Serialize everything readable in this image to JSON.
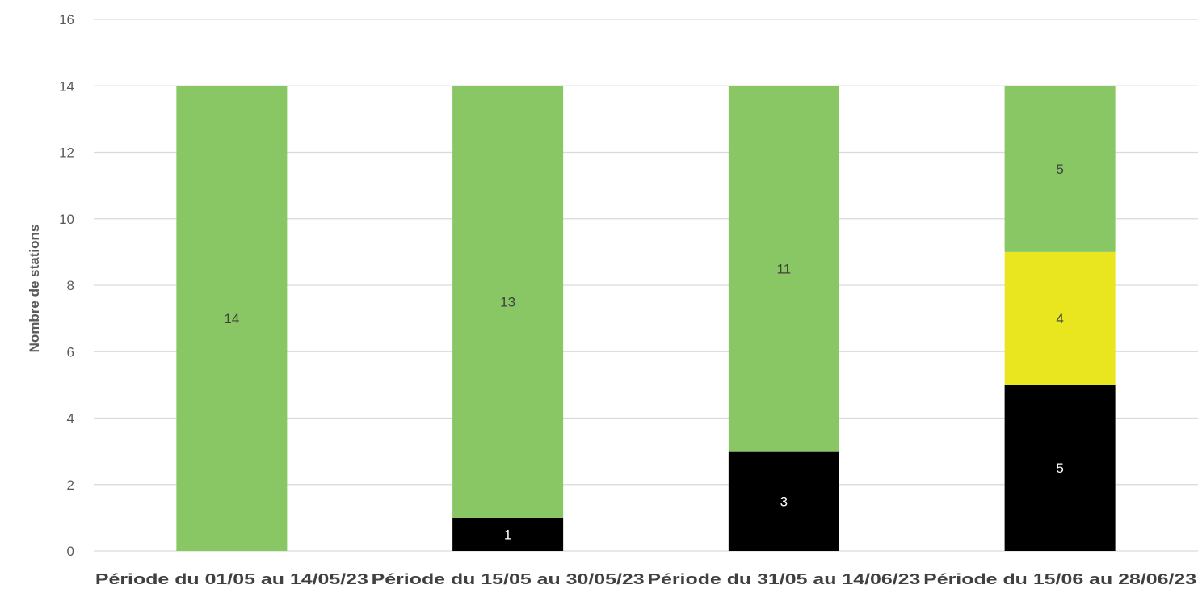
{
  "chart_data": {
    "type": "bar",
    "stacked": true,
    "title": "",
    "xlabel": "",
    "ylabel": "Nombre de stations",
    "ylim": [
      0,
      16
    ],
    "yticks": [
      0,
      2,
      4,
      6,
      8,
      10,
      12,
      14,
      16
    ],
    "grid": true,
    "legend": "none",
    "categories": [
      "Période du 01/05 au 14/05/23",
      "Période du 15/05 au 30/05/23",
      "Période du 31/05 au 14/06/23",
      "Période du 15/06 au 28/06/23"
    ],
    "series": [
      {
        "color": "#000000",
        "label_color": "#ffffff",
        "values": [
          0,
          1,
          3,
          5
        ]
      },
      {
        "color": "#e9e620",
        "label_color": "#404040",
        "values": [
          0,
          0,
          0,
          4
        ]
      },
      {
        "color": "#88c764",
        "label_color": "#404040",
        "values": [
          14,
          13,
          11,
          5
        ]
      }
    ],
    "gridline_color": "#d9d9d9"
  }
}
